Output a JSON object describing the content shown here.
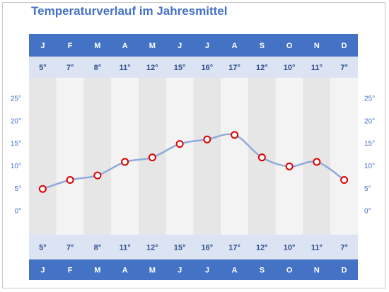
{
  "chart_data": {
    "type": "line",
    "title": "Temperaturverlauf im Jahresmittel",
    "categories": [
      "J",
      "F",
      "M",
      "A",
      "M",
      "J",
      "J",
      "A",
      "S",
      "O",
      "N",
      "D"
    ],
    "series": [
      {
        "values": [
          5,
          7,
          8,
          11,
          12,
          15,
          16,
          17,
          12,
          10,
          11,
          7
        ]
      }
    ],
    "value_labels": [
      "5°",
      "7°",
      "8°",
      "11°",
      "12°",
      "15°",
      "16°",
      "17°",
      "12°",
      "10°",
      "11°",
      "7°"
    ],
    "y_ticks": [
      "0°",
      "5°",
      "10°",
      "15°",
      "20°",
      "25°"
    ],
    "ylim": [
      0,
      25
    ],
    "grid": false,
    "legend": "none"
  },
  "colors": {
    "title": "#4472c4",
    "header_band": "#4472c4",
    "value_band": "#dce3f2",
    "column_dark": "#e6e6e6",
    "column_light": "#f3f3f3",
    "line": "#8faadc",
    "marker_stroke": "#e00000",
    "marker_fill": "#ffffff"
  }
}
